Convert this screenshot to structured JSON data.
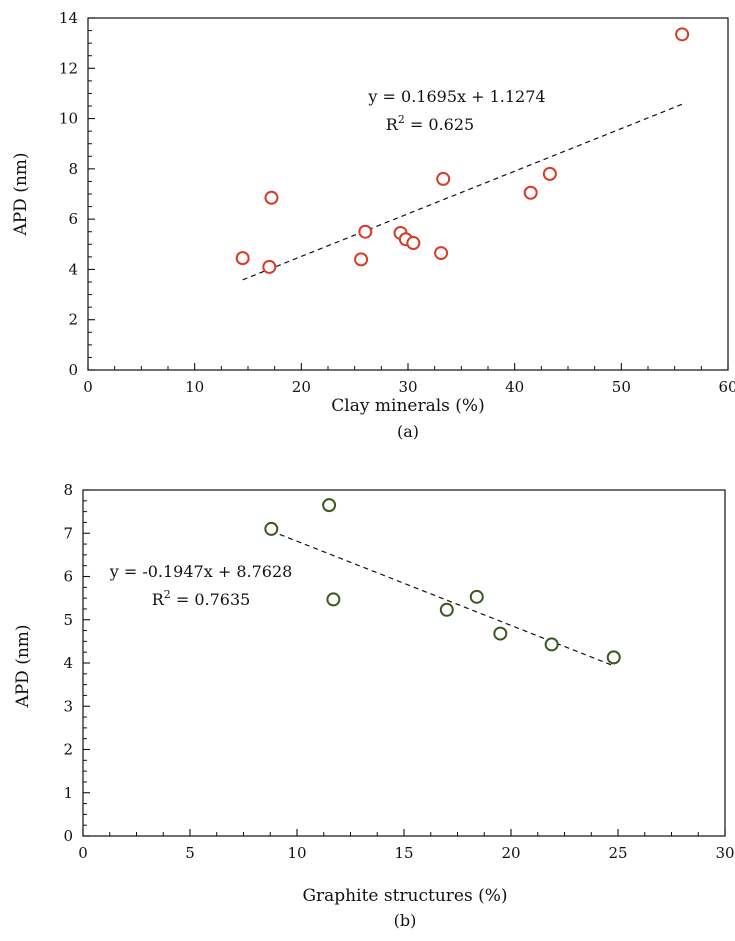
{
  "chart_data": [
    {
      "type": "scatter",
      "panel_label": "(a)",
      "xlabel": "Clay minerals (%)",
      "ylabel": "APD (nm)",
      "xlim": [
        0,
        60
      ],
      "ylim": [
        0,
        14
      ],
      "x_ticks": [
        0,
        10,
        20,
        30,
        40,
        50,
        60
      ],
      "y_ticks": [
        0,
        2,
        4,
        6,
        8,
        10,
        12,
        14
      ],
      "grid": false,
      "marker": "open-circle",
      "marker_color": "#d93a26",
      "points": [
        {
          "x": 14.5,
          "y": 4.45
        },
        {
          "x": 17.0,
          "y": 4.1
        },
        {
          "x": 17.2,
          "y": 6.85
        },
        {
          "x": 25.6,
          "y": 4.4
        },
        {
          "x": 26.0,
          "y": 5.5
        },
        {
          "x": 29.3,
          "y": 5.45
        },
        {
          "x": 29.8,
          "y": 5.2
        },
        {
          "x": 30.5,
          "y": 5.05
        },
        {
          "x": 33.1,
          "y": 4.65
        },
        {
          "x": 33.3,
          "y": 7.6
        },
        {
          "x": 41.5,
          "y": 7.05
        },
        {
          "x": 43.3,
          "y": 7.8
        },
        {
          "x": 55.7,
          "y": 13.35
        }
      ],
      "trendline": {
        "slope": 0.1695,
        "intercept": 1.1274,
        "x_range": [
          14.5,
          55.7
        ]
      },
      "equation_text": "y = 0.1695x + 1.1274",
      "r2_prefix": "R",
      "r2_sup": "2",
      "r2_suffix": " = 0.625"
    },
    {
      "type": "scatter",
      "panel_label": "(b)",
      "xlabel": "Graphite structures (%)",
      "ylabel": "APD (nm)",
      "xlim": [
        0,
        30
      ],
      "ylim": [
        0,
        8
      ],
      "x_ticks": [
        0,
        5,
        10,
        15,
        20,
        25,
        30
      ],
      "y_ticks": [
        0,
        1,
        2,
        3,
        4,
        5,
        6,
        7,
        8
      ],
      "grid": false,
      "marker": "open-circle",
      "marker_color": "#3a5a1e",
      "points": [
        {
          "x": 8.8,
          "y": 7.1
        },
        {
          "x": 11.5,
          "y": 7.65
        },
        {
          "x": 11.7,
          "y": 5.47
        },
        {
          "x": 17.0,
          "y": 5.23
        },
        {
          "x": 18.4,
          "y": 5.53
        },
        {
          "x": 19.5,
          "y": 4.68
        },
        {
          "x": 21.9,
          "y": 4.43
        },
        {
          "x": 24.8,
          "y": 4.13
        }
      ],
      "trendline": {
        "slope": -0.1947,
        "intercept": 8.7628,
        "x_range": [
          8.8,
          24.8
        ]
      },
      "equation_text": "y = -0.1947x + 8.7628",
      "r2_prefix": "R",
      "r2_sup": "2",
      "r2_suffix": " = 0.7635"
    }
  ]
}
